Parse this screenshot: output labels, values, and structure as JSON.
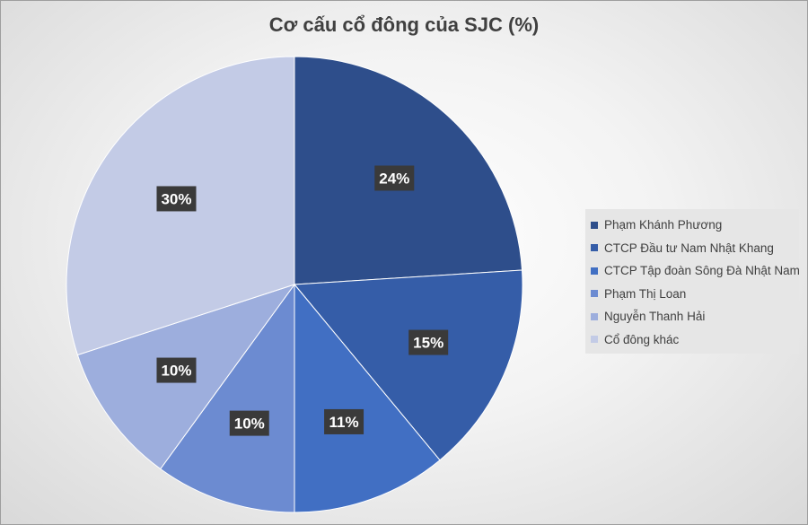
{
  "chart_data": {
    "type": "pie",
    "title": "Cơ cấu cổ đông của SJC (%)",
    "legend_position": "right",
    "slices": [
      {
        "label": "Phạm Khánh Phương",
        "value": 24,
        "value_label": "24%",
        "color": "#2e4e8b"
      },
      {
        "label": "CTCP Đầu tư Nam Nhật Khang",
        "value": 15,
        "value_label": "15%",
        "color": "#355da8"
      },
      {
        "label": "CTCP Tập đoàn Sông Đà Nhật Nam",
        "value": 11,
        "value_label": "11%",
        "color": "#416fc3"
      },
      {
        "label": "Phạm Thị Loan",
        "value": 10,
        "value_label": "10%",
        "color": "#6c8bd1"
      },
      {
        "label": "Nguyễn Thanh Hải",
        "value": 10,
        "value_label": "10%",
        "color": "#9daedd"
      },
      {
        "label": "Cổ đông khác",
        "value": 30,
        "value_label": "30%",
        "color": "#c3cbe6"
      }
    ]
  }
}
